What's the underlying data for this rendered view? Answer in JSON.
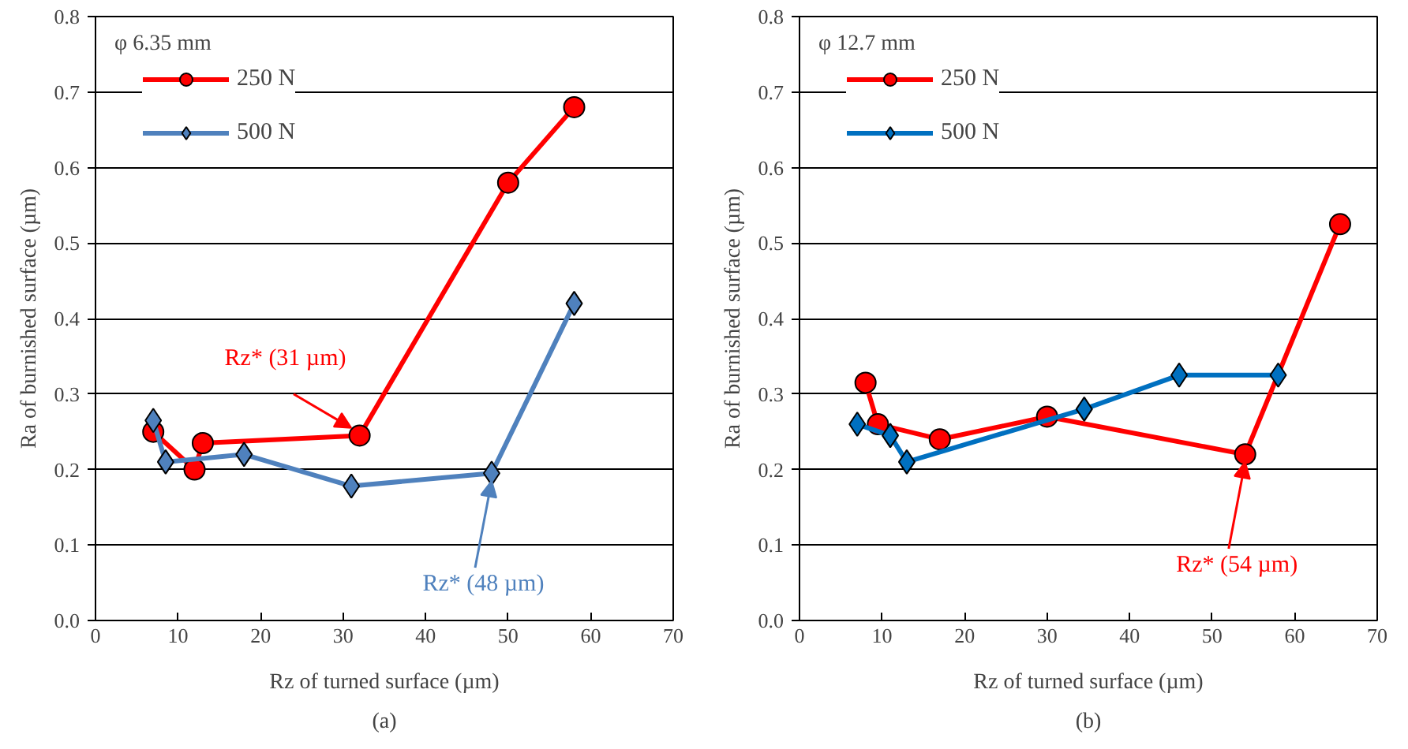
{
  "chart_data": [
    {
      "type": "line",
      "title": "(a)",
      "xlabel": "Rz of turned surface (µm)",
      "ylabel": "Ra of burnished surface (µm)",
      "xlim": [
        0,
        70
      ],
      "xticks": [
        0,
        10,
        20,
        30,
        40,
        50,
        60,
        70
      ],
      "ylim": [
        0,
        0.8
      ],
      "yticks": [
        {
          "value": 0,
          "label": "0.0"
        },
        0.1,
        0.2,
        0.3,
        0.4,
        0.5,
        0.6,
        0.7,
        0.8
      ],
      "grid": "y",
      "legend": "top left",
      "series": [
        {
          "name": "250 N",
          "color": "#ff0000",
          "marker": "circle",
          "x": [
            7,
            12,
            13,
            32,
            50,
            58
          ],
          "values": [
            0.25,
            0.2,
            0.235,
            0.245,
            0.58,
            0.68
          ]
        },
        {
          "name": "500 N",
          "color": "#4f81bd",
          "marker": "diamond",
          "x": [
            7,
            8.5,
            18,
            31,
            48,
            58
          ],
          "values": [
            0.265,
            0.21,
            0.22,
            0.178,
            0.195,
            0.42
          ]
        }
      ],
      "annotations": [
        "φ 6.35 mm",
        {
          "text": "Rz* (31 µm)",
          "x": 32,
          "y": 0.245
        },
        {
          "text": "Rz* (48 µm)",
          "x": 48,
          "y": 0.195
        }
      ]
    },
    {
      "type": "line",
      "title": "(b)",
      "xlabel": "Rz of turned surface (µm)",
      "ylabel": "Ra of burnished surface (µm)",
      "xlim": [
        0,
        70
      ],
      "xticks": [
        0,
        10,
        20,
        30,
        40,
        50,
        60,
        70
      ],
      "ylim": [
        0,
        0.8
      ],
      "yticks": [
        {
          "value": 0,
          "label": "0.0"
        },
        0.1,
        0.2,
        0.3,
        0.4,
        0.5,
        0.6,
        0.7,
        0.8
      ],
      "grid": "y",
      "legend": "top left",
      "series": [
        {
          "name": "250 N",
          "color": "#ff0000",
          "marker": "circle",
          "x": [
            8,
            9.5,
            17,
            30,
            54,
            65.5
          ],
          "values": [
            0.315,
            0.26,
            0.24,
            0.27,
            0.22,
            0.525
          ]
        },
        {
          "name": "500 N",
          "color": "#0070c0",
          "marker": "diamond",
          "x": [
            7,
            11,
            13,
            34.5,
            46,
            58
          ],
          "values": [
            0.26,
            0.245,
            0.21,
            0.28,
            0.325,
            0.325
          ]
        }
      ],
      "annotations": [
        "φ 12.7 mm",
        {
          "text": "Rz* (54 µm)",
          "x": 54,
          "y": 0.22
        }
      ]
    }
  ]
}
